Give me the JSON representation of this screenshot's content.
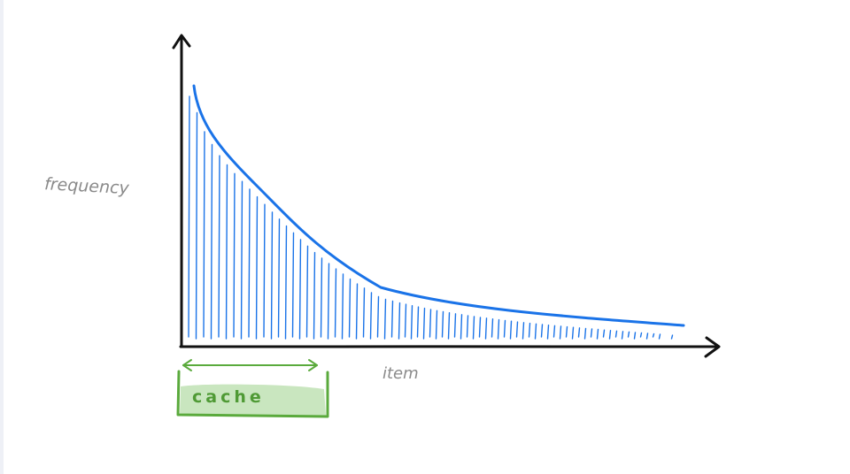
{
  "labels": {
    "y_axis": "frequency",
    "x_axis": "item",
    "cache": "cache"
  },
  "colors": {
    "axis": "#111111",
    "curve": "#1a73e8",
    "label_gray": "#8a8a8a",
    "cache_border": "#5aaa3c",
    "cache_fill": "#c9e6bf",
    "cache_text": "#4f9a35"
  },
  "chart_data": {
    "type": "area",
    "title": "",
    "xlabel": "item",
    "ylabel": "frequency",
    "curve": "long-tail decreasing frequency over items",
    "cache_span_items": "leftmost (most frequent) items"
  }
}
